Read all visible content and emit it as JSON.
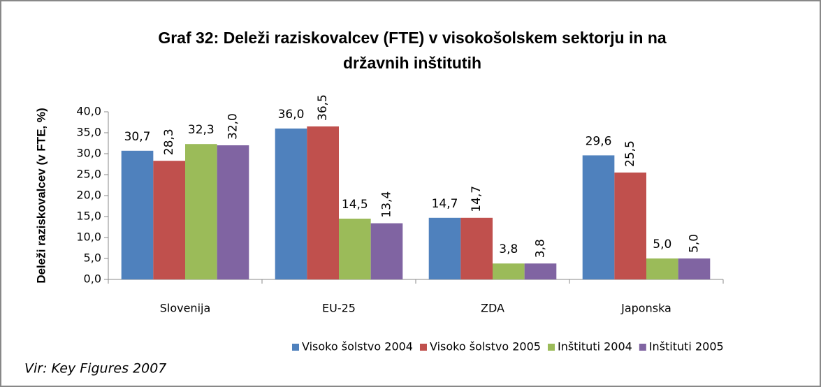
{
  "chart_data": {
    "type": "bar",
    "title": [
      "Graf 32: Deleži raziskovalcev (FTE) v visokošolskem sektorju in na",
      "državnih inštitutih"
    ],
    "y_label": "Deleži raziskovalcev (v FTE, %)",
    "source": "Vir: Key Figures 2007",
    "categories": [
      "Slovenija",
      "EU-25",
      "ZDA",
      "Japonska"
    ],
    "series": [
      {
        "name": "Visoko šolstvo 2004",
        "color": "#4f81bd",
        "values": [
          30.7,
          36.0,
          14.7,
          29.6
        ],
        "value_labels": [
          "30,7",
          "36,0",
          "14,7",
          "29,6"
        ]
      },
      {
        "name": "Visoko šolstvo 2005",
        "color": "#c0504d",
        "values": [
          28.3,
          36.5,
          14.7,
          25.5
        ],
        "value_labels": [
          "28,3",
          "36,5",
          "14,7",
          "25,5"
        ]
      },
      {
        "name": "Inštituti 2004",
        "color": "#9bbb59",
        "values": [
          32.3,
          14.5,
          3.8,
          5.0
        ],
        "value_labels": [
          "32,3",
          "14,5",
          "3,8",
          "5,0"
        ]
      },
      {
        "name": "Inštituti 2005",
        "color": "#8064a2",
        "values": [
          32.0,
          13.4,
          3.8,
          5.0
        ],
        "value_labels": [
          "32,0",
          "13,4",
          "3,8",
          "5,0"
        ]
      }
    ],
    "ylim": [
      0,
      40
    ],
    "yticks": [
      {
        "value": 0,
        "label": "0,0"
      },
      {
        "value": 5,
        "label": "5,0"
      },
      {
        "value": 10,
        "label": "10,0"
      },
      {
        "value": 15,
        "label": "15,0"
      },
      {
        "value": 20,
        "label": "20,0"
      },
      {
        "value": 25,
        "label": "25,0"
      },
      {
        "value": 30,
        "label": "30,0"
      },
      {
        "value": 35,
        "label": "35,0"
      },
      {
        "value": 40,
        "label": "40,0"
      }
    ],
    "grid": false,
    "legend": "bottom"
  }
}
